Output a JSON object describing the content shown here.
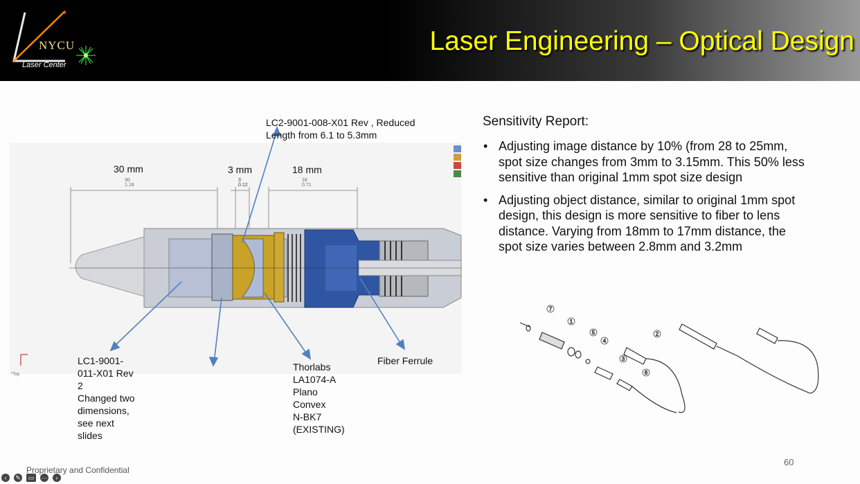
{
  "header": {
    "logo_text": "NYCU",
    "logo_sub": "Laser Center",
    "title": "Laser Engineering – Optical Design"
  },
  "diagram": {
    "top_callout": [
      "LC2-9001-008-X01 Rev , Reduced",
      "Length from 6.1 to 5.3mm"
    ],
    "dims": {
      "d1": "30 mm",
      "d1_small": [
        "30",
        "1.18"
      ],
      "d2": "3 mm",
      "d2_small": [
        "3",
        "0.12"
      ],
      "d3": "18 mm",
      "d3_small": [
        "18",
        "0.71"
      ]
    },
    "left_callout": [
      "LC1-9001-",
      "011-X01 Rev",
      "2",
      "Changed two",
      "dimensions,",
      "see next",
      "slides"
    ],
    "lens_callout": [
      "Thorlabs",
      "LA1074-A",
      "Plano",
      "Convex",
      "N-BK7",
      "(EXISTING)"
    ],
    "ferrule_callout": "Fiber Ferrule",
    "axis_label": "*Top"
  },
  "report": {
    "title": "Sensitivity Report:",
    "bullets": [
      [
        "Adjusting image distance by 10% (from 28 to 25mm,",
        "spot size changes from 3mm to 3.15mm. This 50% less",
        "sensitive than original 1mm spot size design"
      ],
      [
        "Adjusting object distance, similar to original 1mm spot",
        "design, this design is more sensitive to fiber to lens",
        "distance. Varying from 18mm to 17mm distance, the",
        "spot size varies between 2.8mm and 3.2mm"
      ]
    ]
  },
  "exploded": {
    "part_numbers": [
      "7",
      "1",
      "5",
      "4",
      "3",
      "2",
      "6"
    ]
  },
  "page_number": "60",
  "footer": "Proprietary and Confidential",
  "colors": {
    "title_yellow": "#ffff00",
    "housing_blue": "#2f56a3",
    "lens_gold": "#c9a227",
    "arrow_blue": "#4f81bd"
  }
}
